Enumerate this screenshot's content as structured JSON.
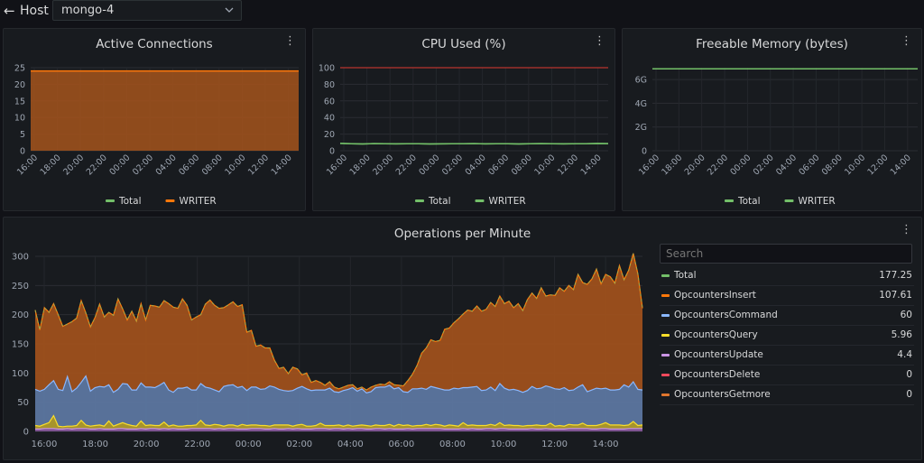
{
  "topbar": {
    "back_arrow": "←",
    "host_label": "Host",
    "host_value": "mongo-4",
    "chevron_icon": "chevron-down-icon"
  },
  "time_ticks": [
    "16:00",
    "18:00",
    "20:00",
    "22:00",
    "00:00",
    "02:00",
    "04:00",
    "06:00",
    "08:00",
    "10:00",
    "12:00",
    "14:00"
  ],
  "colors": {
    "green": "#73bf69",
    "orange": "#ff780a",
    "blue": "#8ab8ff",
    "yellow": "#fade2a",
    "purple": "#ca95e5",
    "red": "#f2495c",
    "darkorange": "#e0752d"
  },
  "panels": {
    "active": {
      "title": "Active Connections",
      "menu": "⋮",
      "legend": [
        "Total",
        "WRITER"
      ]
    },
    "cpu": {
      "title": "CPU Used (%)",
      "menu": "⋮",
      "legend": [
        "Total",
        "WRITER"
      ]
    },
    "memory": {
      "title": "Freeable Memory (bytes)",
      "menu": "⋮",
      "legend": [
        "Total",
        "WRITER"
      ]
    },
    "ops": {
      "title": "Operations per Minute",
      "menu": "⋮",
      "search_placeholder": "Search",
      "legend": [
        {
          "name": "Total",
          "value": "177.25",
          "color": "#73bf69"
        },
        {
          "name": "OpcountersInsert",
          "value": "107.61",
          "color": "#ff780a"
        },
        {
          "name": "OpcountersCommand",
          "value": "60",
          "color": "#8ab8ff"
        },
        {
          "name": "OpcountersQuery",
          "value": "5.96",
          "color": "#fade2a"
        },
        {
          "name": "OpcountersUpdate",
          "value": "4.4",
          "color": "#ca95e5"
        },
        {
          "name": "OpcountersDelete",
          "value": "0",
          "color": "#f2495c"
        },
        {
          "name": "OpcountersGetmore",
          "value": "0",
          "color": "#e0752d"
        }
      ]
    }
  },
  "chart_data": [
    {
      "type": "area",
      "title": "Active Connections",
      "x_ticks": [
        "16:00",
        "18:00",
        "20:00",
        "22:00",
        "00:00",
        "02:00",
        "04:00",
        "06:00",
        "08:00",
        "10:00",
        "12:00",
        "14:00"
      ],
      "y_ticks": [
        0,
        5,
        10,
        15,
        20,
        25
      ],
      "ylim": [
        0,
        25
      ],
      "series": [
        {
          "name": "Total",
          "values": [
            24,
            24
          ]
        },
        {
          "name": "WRITER",
          "values": [
            24,
            24
          ]
        }
      ],
      "legend_position": "bottom",
      "grid": true
    },
    {
      "type": "line",
      "title": "CPU Used (%)",
      "x_ticks": [
        "16:00",
        "18:00",
        "20:00",
        "22:00",
        "00:00",
        "02:00",
        "04:00",
        "06:00",
        "08:00",
        "10:00",
        "12:00",
        "14:00"
      ],
      "y_ticks": [
        0,
        20,
        40,
        60,
        80,
        100
      ],
      "ylim": [
        0,
        100
      ],
      "series": [
        {
          "name": "Total",
          "values": [
            8.8,
            8.5,
            8.2,
            8.6,
            8.4,
            8.3,
            8.5,
            8.4,
            8.2,
            8.3,
            8.5,
            8.4,
            8.6,
            8.3,
            8.4,
            8.5,
            8.2,
            8.4,
            8.6,
            8.5,
            8.3,
            8.4,
            8.5,
            8.7,
            8.6
          ]
        },
        {
          "name": "WRITER",
          "values": [
            8.8,
            8.5,
            8.2,
            8.6,
            8.4,
            8.3,
            8.5,
            8.4,
            8.2,
            8.3,
            8.5,
            8.4,
            8.6,
            8.3,
            8.4,
            8.5,
            8.2,
            8.4,
            8.6,
            8.5,
            8.3,
            8.4,
            8.5,
            8.7,
            8.6
          ]
        }
      ],
      "threshold": 100,
      "legend_position": "bottom",
      "grid": true
    },
    {
      "type": "line",
      "title": "Freeable Memory (bytes)",
      "x_ticks": [
        "16:00",
        "18:00",
        "20:00",
        "22:00",
        "00:00",
        "02:00",
        "04:00",
        "06:00",
        "08:00",
        "10:00",
        "12:00",
        "14:00"
      ],
      "y_ticks": [
        "0",
        "2G",
        "4G",
        "6G"
      ],
      "ylim": [
        0,
        7
      ],
      "series": [
        {
          "name": "Total",
          "values": [
            6.9,
            6.9,
            6.9,
            6.9,
            6.9,
            6.9,
            6.9,
            6.9,
            6.9,
            6.9,
            6.9,
            6.9,
            6.9
          ]
        },
        {
          "name": "WRITER",
          "values": [
            6.9,
            6.9,
            6.9,
            6.9,
            6.9,
            6.9,
            6.9,
            6.9,
            6.9,
            6.9,
            6.9,
            6.9,
            6.9
          ]
        }
      ],
      "legend_position": "bottom",
      "grid": true
    },
    {
      "type": "area",
      "title": "Operations per Minute",
      "x_ticks": [
        "16:00",
        "18:00",
        "20:00",
        "22:00",
        "00:00",
        "02:00",
        "04:00",
        "06:00",
        "08:00",
        "10:00",
        "12:00",
        "14:00"
      ],
      "y_ticks": [
        0,
        50,
        100,
        150,
        200,
        250,
        300
      ],
      "ylim": [
        0,
        300
      ],
      "stacked": true,
      "series": [
        {
          "name": "OpcountersInsert",
          "values": [
            136,
            105,
            140,
            124,
            132,
            128,
            110,
            90,
            120,
            120,
            140,
            108,
            110,
            120,
            141,
            120,
            124,
            132,
            155,
            128,
            110,
            135,
            118,
            136,
            115,
            140,
            140,
            134,
            140,
            148,
            146,
            137,
            153,
            140,
            120,
            125,
            118,
            142,
            151,
            145,
            143,
            135,
            138,
            142,
            139,
            140,
            100,
            97,
            70,
            76,
            70,
            65,
            46,
            36,
            40,
            30,
            40,
            33,
            20,
            27,
            14,
            16,
            13,
            8,
            11,
            8,
            6,
            6,
            7,
            5,
            4,
            3,
            5,
            8,
            4,
            5,
            4,
            6,
            7,
            4,
            10,
            20,
            25,
            40,
            60,
            71,
            80,
            79,
            83,
            104,
            106,
            112,
            120,
            126,
            133,
            130,
            138,
            136,
            138,
            145,
            144,
            150,
            145,
            152,
            140,
            149,
            140,
            156,
            160,
            155,
            172,
            154,
            158,
            160,
            174,
            165,
            180,
            172,
            193,
            175,
            184,
            190,
            204,
            180,
            195,
            194,
            183,
            212,
            180,
            200,
            220,
            198,
            140
          ]
        },
        {
          "name": "OpcountersCommand",
          "values": [
            62,
            60,
            60,
            65,
            60,
            63,
            62,
            85,
            59,
            64,
            65,
            84,
            60,
            65,
            66,
            67,
            62,
            58,
            60,
            67,
            69,
            61,
            62,
            65,
            66,
            65,
            65,
            69,
            68,
            62,
            56,
            65,
            65,
            66,
            61,
            60,
            63,
            65,
            64,
            59,
            57,
            68,
            68,
            69,
            66,
            65,
            60,
            65,
            65,
            62,
            63,
            69,
            65,
            61,
            59,
            58,
            61,
            63,
            65,
            64,
            61,
            61,
            57,
            61,
            64,
            58,
            56,
            61,
            61,
            66,
            59,
            62,
            56,
            59,
            64,
            66,
            66,
            67,
            64,
            63,
            58,
            56,
            64,
            63,
            64,
            60,
            67,
            63,
            62,
            62,
            60,
            64,
            64,
            60,
            65,
            65,
            67,
            60,
            61,
            64,
            60,
            67,
            64,
            60,
            62,
            60,
            58,
            60,
            67,
            62,
            64,
            68,
            62,
            64,
            62,
            66,
            58,
            60,
            65,
            66,
            58,
            61,
            64,
            61,
            59,
            60,
            60,
            61,
            70,
            65,
            68,
            62,
            60
          ]
        },
        {
          "name": "OpcountersQuery",
          "values": [
            6,
            5,
            7,
            10,
            22,
            5,
            4,
            4,
            5,
            5,
            14,
            6,
            5,
            6,
            6,
            5,
            14,
            5,
            7,
            10,
            8,
            6,
            5,
            13,
            6,
            6,
            5,
            6,
            11,
            5,
            6,
            5,
            5,
            6,
            5,
            6,
            14,
            6,
            5,
            8,
            6,
            5,
            6,
            6,
            5,
            8,
            6,
            6,
            6,
            5,
            6,
            5,
            6,
            7,
            7,
            6,
            5,
            6,
            8,
            5,
            5,
            5,
            9,
            5,
            6,
            5,
            6,
            5,
            6,
            5,
            5,
            6,
            6,
            5,
            6,
            5,
            6,
            7,
            5,
            8,
            6,
            6,
            5,
            5,
            5,
            7,
            5,
            7,
            6,
            5,
            7,
            6,
            5,
            10,
            6,
            6,
            6,
            6,
            5,
            7,
            6,
            10,
            5,
            7,
            6,
            6,
            5,
            6,
            5,
            7,
            6,
            5,
            10,
            5,
            6,
            5,
            7,
            6,
            6,
            9,
            5,
            6,
            6,
            7,
            10,
            7,
            7,
            7,
            6,
            6,
            12,
            5,
            6
          ]
        },
        {
          "name": "OpcountersUpdate",
          "values": [
            4,
            4,
            5,
            5,
            5,
            4,
            4,
            5,
            4,
            5,
            5,
            5,
            4,
            4,
            5,
            4,
            4,
            4,
            5,
            5,
            4,
            4,
            4,
            5,
            4,
            5,
            5,
            4,
            5,
            4,
            5,
            4,
            4,
            4,
            5,
            5,
            5,
            5,
            5,
            4,
            5,
            4,
            5,
            5,
            4,
            4,
            4,
            5,
            5,
            5,
            4,
            4,
            5,
            4,
            4,
            5,
            4,
            5,
            4,
            4,
            4,
            5,
            5,
            5,
            4,
            5,
            5,
            4,
            5,
            4,
            5,
            5,
            4,
            4,
            5,
            5,
            4,
            5,
            4,
            4,
            4,
            5,
            4,
            5,
            5,
            5,
            5,
            5,
            5,
            4,
            4,
            4,
            4,
            5,
            4,
            5,
            4,
            4,
            5,
            5,
            4,
            5,
            5,
            4,
            4,
            4,
            4,
            4,
            5,
            4,
            4,
            5,
            4,
            4,
            4,
            4,
            5,
            5,
            5,
            5,
            5,
            4,
            4,
            5,
            5,
            4,
            4,
            4,
            4,
            5,
            5,
            5,
            5
          ]
        }
      ],
      "legend_position": "right",
      "grid": true
    }
  ]
}
